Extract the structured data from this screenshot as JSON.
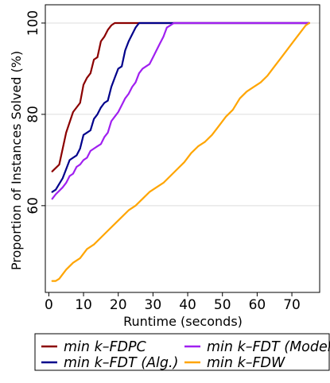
{
  "chart_data": {
    "type": "line",
    "xlabel": "Runtime (seconds)",
    "ylabel": "Proportion of Instances Solved (%)",
    "xlim": [
      -1,
      78
    ],
    "ylim": [
      41,
      104
    ],
    "xticks": [
      0,
      10,
      20,
      30,
      40,
      50,
      60,
      70
    ],
    "yticks": [
      60,
      80,
      100
    ],
    "grid": "horizontal",
    "legend_position": "bottom",
    "series": [
      {
        "name": "min k–FDPC",
        "color": "#8b0000",
        "x": [
          1,
          3,
          5,
          7,
          9,
          10,
          11,
          12,
          13,
          14,
          15,
          16,
          17,
          18,
          19,
          20,
          75
        ],
        "y": [
          67.5,
          69,
          76,
          80.5,
          82.5,
          86.5,
          88,
          89,
          92,
          92.5,
          96,
          97,
          98.5,
          99.5,
          100,
          100,
          100
        ]
      },
      {
        "name": "min k–FDT (Alg.)",
        "color": "#00008b",
        "x": [
          1,
          2,
          4,
          5,
          6,
          7,
          8,
          9,
          10,
          11,
          12,
          13,
          14,
          15,
          16,
          17,
          18,
          19,
          20,
          21,
          22,
          23,
          24,
          25,
          26,
          27,
          28,
          75
        ],
        "y": [
          63,
          63.5,
          66,
          68,
          70,
          70.5,
          71,
          72.5,
          75.5,
          76,
          76.5,
          79,
          80,
          81.5,
          82.5,
          83,
          86,
          88,
          90,
          90.5,
          94,
          96,
          97.5,
          99,
          100,
          100,
          100,
          100
        ]
      },
      {
        "name": "min k–FDT (Model)",
        "color": "#a020f0",
        "x": [
          1,
          2,
          4,
          5,
          6,
          7,
          8,
          9,
          10,
          11,
          12,
          13,
          14,
          15,
          16,
          17,
          18,
          19,
          20,
          21,
          22,
          23,
          24,
          25,
          26,
          27,
          28,
          29,
          30,
          31,
          32,
          33,
          34,
          35,
          36,
          37,
          75
        ],
        "y": [
          61.5,
          62.5,
          64,
          65,
          66.5,
          67,
          68.5,
          69,
          70,
          70.5,
          72,
          72.5,
          73,
          73.5,
          75,
          76,
          78.5,
          79.5,
          80.5,
          82,
          83.5,
          84.5,
          86,
          87,
          89,
          90,
          90.5,
          91,
          92.5,
          94,
          95.5,
          97,
          99,
          99.5,
          100,
          100,
          100
        ]
      },
      {
        "name": "min k–FDW",
        "color": "#ffa500",
        "x": [
          1,
          2,
          3,
          5,
          7,
          9,
          11,
          13,
          15,
          17,
          19,
          21,
          23,
          25,
          27,
          29,
          31,
          33,
          35,
          37,
          39,
          41,
          43,
          45,
          47,
          49,
          51,
          53,
          55,
          57,
          59,
          61,
          63,
          65,
          67,
          69,
          71,
          73,
          74,
          75
        ],
        "y": [
          43.5,
          43.5,
          44,
          46,
          47.5,
          48.5,
          50.5,
          51.5,
          53,
          54.5,
          56,
          57.5,
          59,
          60,
          61.5,
          63,
          64,
          65,
          66.5,
          68,
          69.5,
          71.5,
          73,
          74,
          75.5,
          77.5,
          79.5,
          81,
          83.5,
          85,
          86,
          87,
          88.5,
          90.5,
          92.5,
          94.5,
          96.5,
          98.5,
          99.5,
          100
        ]
      }
    ]
  }
}
